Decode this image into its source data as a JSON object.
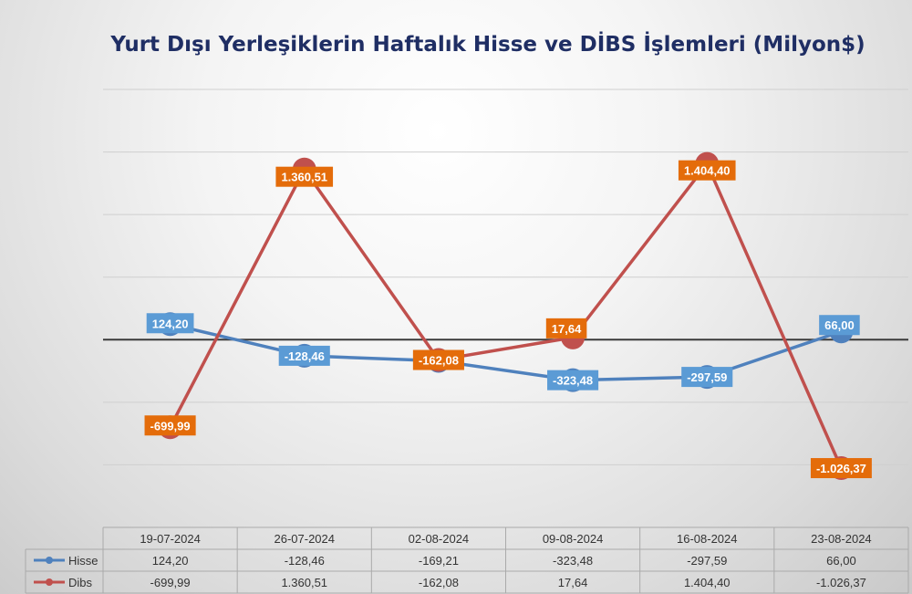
{
  "chart_data": {
    "type": "line",
    "title": "Yurt Dışı Yerleşiklerin Haftalık Hisse ve DİBS İşlemleri (Milyon$)",
    "categories": [
      "19-07-2024",
      "26-07-2024",
      "02-08-2024",
      "09-08-2024",
      "16-08-2024",
      "23-08-2024"
    ],
    "series": [
      {
        "name": "Hisse",
        "values": [
          124.2,
          -128.46,
          -169.21,
          -323.48,
          -297.59,
          66.0
        ],
        "labels": [
          "124,20",
          "-128,46",
          "-169,21",
          "-323,48",
          "-297,59",
          "66,00"
        ],
        "color": "#4f81bd"
      },
      {
        "name": "Dibs",
        "values": [
          -699.99,
          1360.51,
          -162.08,
          17.64,
          1404.4,
          -1026.37
        ],
        "labels": [
          "-699,99",
          "1.360,51",
          "-162,08",
          "17,64",
          "1.404,40",
          "-1.026,37"
        ],
        "color": "#c0504d"
      }
    ],
    "data_label_colors": {
      "Hisse": "#5b9bd5",
      "Dibs": "#e46c0a"
    },
    "grid": true,
    "legend": "data-table",
    "ylim": [
      -1500,
      2000
    ]
  }
}
